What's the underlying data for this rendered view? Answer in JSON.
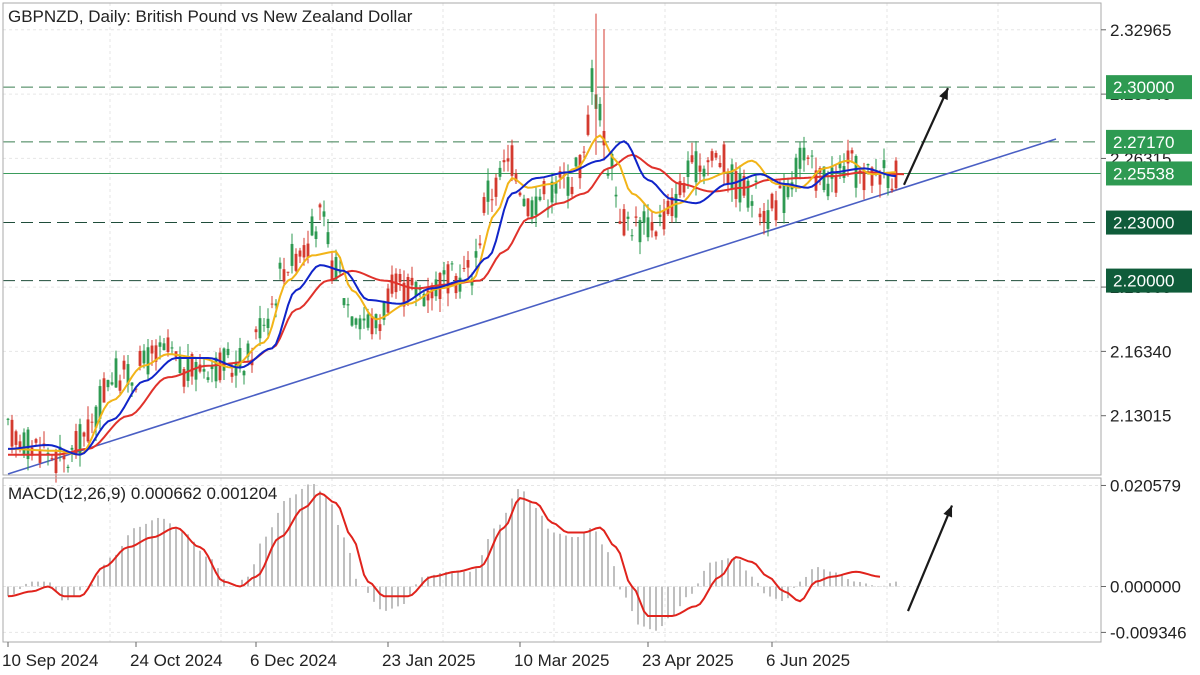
{
  "chart_data": [
    {
      "type": "candlestick",
      "title": "GBPNZD, Daily:  British Pound vs New Zealand Dollar",
      "price_axis": {
        "ylim": [
          2.0995,
          2.3435
        ],
        "tick_labels": [
          "2.32965",
          "2.29640",
          "2.26315",
          "2.19665",
          "2.16340",
          "2.13015"
        ],
        "tick_values": [
          2.32965,
          2.2964,
          2.26315,
          2.19665,
          2.1634,
          2.13015
        ]
      },
      "time_axis": {
        "labels": [
          "10 Sep 2024",
          "24 Oct 2024",
          "6 Dec 2024",
          "23 Jan 2025",
          "10 Mar 2025",
          "23 Apr 2025",
          "6 Jun 2025"
        ],
        "label_bars": [
          0,
          32,
          62,
          95,
          128,
          160,
          191
        ]
      },
      "levels": [
        {
          "label": "2.30000",
          "value": 2.3,
          "color": "#2e9a52",
          "style": "dashed",
          "line": "#3a7d50"
        },
        {
          "label": "2.27170",
          "value": 2.2717,
          "color": "#2e9a52",
          "style": "dashed",
          "line": "#3a7d50"
        },
        {
          "label": "2.25538",
          "value": 2.25538,
          "color": "#2e9a52",
          "style": "solid",
          "line": "#3b9c5c"
        },
        {
          "label": "2.23000",
          "value": 2.23,
          "color": "#0f5c3a",
          "style": "dashed",
          "line": "#1f4d3a"
        },
        {
          "label": "2.20000",
          "value": 2.2,
          "color": "#0f5c3a",
          "style": "dashed",
          "line": "#1f4d3a"
        }
      ],
      "trendline": {
        "from": {
          "bar": 0,
          "value": 2.1
        },
        "to": {
          "bar": 262,
          "value": 2.2732
        },
        "color": "#4a5fc4"
      },
      "arrow": {
        "from": {
          "bar": 224,
          "value": 2.2495
        },
        "to": {
          "bar": 235,
          "value": 2.2995
        }
      },
      "candles_anchor": [
        [
          0,
          2.121
        ],
        [
          8,
          2.114
        ],
        [
          14,
          2.106
        ],
        [
          20,
          2.122
        ],
        [
          26,
          2.152
        ],
        [
          30,
          2.15
        ],
        [
          36,
          2.16
        ],
        [
          40,
          2.163
        ],
        [
          44,
          2.152
        ],
        [
          50,
          2.157
        ],
        [
          56,
          2.156
        ],
        [
          60,
          2.16
        ],
        [
          64,
          2.181
        ],
        [
          70,
          2.21
        ],
        [
          74,
          2.218
        ],
        [
          78,
          2.232
        ],
        [
          82,
          2.205
        ],
        [
          86,
          2.185
        ],
        [
          92,
          2.177
        ],
        [
          96,
          2.195
        ],
        [
          104,
          2.195
        ],
        [
          110,
          2.2
        ],
        [
          116,
          2.205
        ],
        [
          120,
          2.245
        ],
        [
          126,
          2.262
        ],
        [
          130,
          2.24
        ],
        [
          134,
          2.245
        ],
        [
          140,
          2.252
        ],
        [
          144,
          2.262
        ],
        [
          146,
          2.305
        ],
        [
          148,
          2.285
        ],
        [
          150,
          2.262
        ],
        [
          154,
          2.232
        ],
        [
          158,
          2.228
        ],
        [
          162,
          2.23
        ],
        [
          166,
          2.238
        ],
        [
          170,
          2.255
        ],
        [
          174,
          2.262
        ],
        [
          178,
          2.264
        ],
        [
          182,
          2.25
        ],
        [
          186,
          2.245
        ],
        [
          190,
          2.235
        ],
        [
          194,
          2.243
        ],
        [
          198,
          2.263
        ],
        [
          202,
          2.255
        ],
        [
          206,
          2.25
        ],
        [
          210,
          2.26
        ],
        [
          214,
          2.252
        ],
        [
          218,
          2.258
        ],
        [
          222,
          2.255
        ]
      ],
      "ma_yellow": [
        [
          0,
          2.113
        ],
        [
          12,
          2.112
        ],
        [
          18,
          2.11
        ],
        [
          26,
          2.138
        ],
        [
          34,
          2.156
        ],
        [
          40,
          2.162
        ],
        [
          48,
          2.16
        ],
        [
          56,
          2.155
        ],
        [
          64,
          2.168
        ],
        [
          70,
          2.2
        ],
        [
          76,
          2.213
        ],
        [
          82,
          2.215
        ],
        [
          86,
          2.195
        ],
        [
          92,
          2.18
        ],
        [
          100,
          2.188
        ],
        [
          108,
          2.196
        ],
        [
          116,
          2.2
        ],
        [
          122,
          2.235
        ],
        [
          126,
          2.253
        ],
        [
          130,
          2.248
        ],
        [
          136,
          2.25
        ],
        [
          142,
          2.258
        ],
        [
          148,
          2.275
        ],
        [
          152,
          2.262
        ],
        [
          156,
          2.245
        ],
        [
          162,
          2.235
        ],
        [
          168,
          2.24
        ],
        [
          174,
          2.252
        ],
        [
          180,
          2.256
        ],
        [
          186,
          2.262
        ],
        [
          192,
          2.25
        ],
        [
          198,
          2.248
        ],
        [
          204,
          2.258
        ],
        [
          210,
          2.262
        ],
        [
          216,
          2.255
        ],
        [
          222,
          2.256
        ]
      ],
      "ma_blue": [
        [
          0,
          2.113
        ],
        [
          10,
          2.115
        ],
        [
          18,
          2.11
        ],
        [
          26,
          2.128
        ],
        [
          34,
          2.148
        ],
        [
          42,
          2.16
        ],
        [
          50,
          2.16
        ],
        [
          58,
          2.155
        ],
        [
          66,
          2.165
        ],
        [
          72,
          2.195
        ],
        [
          78,
          2.208
        ],
        [
          84,
          2.205
        ],
        [
          90,
          2.19
        ],
        [
          98,
          2.188
        ],
        [
          106,
          2.196
        ],
        [
          114,
          2.2
        ],
        [
          120,
          2.212
        ],
        [
          126,
          2.245
        ],
        [
          132,
          2.253
        ],
        [
          140,
          2.256
        ],
        [
          148,
          2.262
        ],
        [
          154,
          2.272
        ],
        [
          160,
          2.252
        ],
        [
          166,
          2.242
        ],
        [
          172,
          2.24
        ],
        [
          180,
          2.25
        ],
        [
          188,
          2.255
        ],
        [
          194,
          2.25
        ],
        [
          200,
          2.248
        ],
        [
          206,
          2.256
        ],
        [
          214,
          2.258
        ],
        [
          222,
          2.254
        ]
      ],
      "ma_red": [
        [
          0,
          2.11
        ],
        [
          12,
          2.11
        ],
        [
          20,
          2.113
        ],
        [
          30,
          2.13
        ],
        [
          40,
          2.15
        ],
        [
          50,
          2.156
        ],
        [
          60,
          2.158
        ],
        [
          66,
          2.165
        ],
        [
          72,
          2.185
        ],
        [
          80,
          2.2
        ],
        [
          86,
          2.205
        ],
        [
          94,
          2.2
        ],
        [
          102,
          2.196
        ],
        [
          110,
          2.198
        ],
        [
          118,
          2.2
        ],
        [
          124,
          2.215
        ],
        [
          130,
          2.232
        ],
        [
          138,
          2.24
        ],
        [
          144,
          2.245
        ],
        [
          150,
          2.258
        ],
        [
          156,
          2.265
        ],
        [
          162,
          2.258
        ],
        [
          168,
          2.25
        ],
        [
          176,
          2.246
        ],
        [
          184,
          2.248
        ],
        [
          190,
          2.252
        ],
        [
          198,
          2.253
        ],
        [
          206,
          2.254
        ],
        [
          214,
          2.256
        ],
        [
          224,
          2.255
        ]
      ]
    },
    {
      "type": "macd",
      "label": "MACD(12,26,9) 0.000662 0.001204",
      "ylim": [
        -0.0113,
        0.0221
      ],
      "tick_labels": [
        "0.020579",
        "0.000000",
        "-0.009346"
      ],
      "tick_values": [
        0.020579,
        0.0,
        -0.009346
      ],
      "histogram_anchor": [
        [
          0,
          -0.002
        ],
        [
          6,
          0.001
        ],
        [
          10,
          0.001
        ],
        [
          14,
          -0.003
        ],
        [
          20,
          0.0
        ],
        [
          26,
          0.006
        ],
        [
          32,
          0.012
        ],
        [
          38,
          0.014
        ],
        [
          44,
          0.011
        ],
        [
          50,
          0.006
        ],
        [
          56,
          0.0
        ],
        [
          60,
          0.002
        ],
        [
          64,
          0.01
        ],
        [
          70,
          0.018
        ],
        [
          76,
          0.021
        ],
        [
          80,
          0.018
        ],
        [
          84,
          0.01
        ],
        [
          88,
          0.0
        ],
        [
          94,
          -0.005
        ],
        [
          98,
          -0.004
        ],
        [
          104,
          0.002
        ],
        [
          110,
          0.003
        ],
        [
          116,
          0.003
        ],
        [
          122,
          0.012
        ],
        [
          128,
          0.02
        ],
        [
          132,
          0.016
        ],
        [
          136,
          0.011
        ],
        [
          142,
          0.01
        ],
        [
          146,
          0.012
        ],
        [
          150,
          0.007
        ],
        [
          154,
          -0.002
        ],
        [
          158,
          -0.008
        ],
        [
          162,
          -0.009
        ],
        [
          166,
          -0.006
        ],
        [
          170,
          -0.002
        ],
        [
          176,
          0.005
        ],
        [
          182,
          0.006
        ],
        [
          186,
          0.002
        ],
        [
          190,
          -0.002
        ],
        [
          194,
          -0.003
        ],
        [
          198,
          0.001
        ],
        [
          202,
          0.004
        ],
        [
          206,
          0.003
        ],
        [
          212,
          0.001
        ],
        [
          218,
          0.0
        ],
        [
          222,
          0.001
        ]
      ],
      "signal": [
        [
          0,
          -0.002
        ],
        [
          6,
          -0.001
        ],
        [
          10,
          0.0
        ],
        [
          14,
          -0.002
        ],
        [
          18,
          -0.002
        ],
        [
          24,
          0.004
        ],
        [
          30,
          0.008
        ],
        [
          36,
          0.01
        ],
        [
          42,
          0.012
        ],
        [
          48,
          0.008
        ],
        [
          54,
          0.001
        ],
        [
          58,
          0.0
        ],
        [
          62,
          0.002
        ],
        [
          68,
          0.01
        ],
        [
          74,
          0.016
        ],
        [
          78,
          0.019
        ],
        [
          82,
          0.017
        ],
        [
          86,
          0.01
        ],
        [
          90,
          0.001
        ],
        [
          94,
          -0.002
        ],
        [
          100,
          -0.002
        ],
        [
          106,
          0.002
        ],
        [
          112,
          0.003
        ],
        [
          118,
          0.004
        ],
        [
          124,
          0.012
        ],
        [
          128,
          0.018
        ],
        [
          132,
          0.017
        ],
        [
          136,
          0.013
        ],
        [
          140,
          0.011
        ],
        [
          144,
          0.011
        ],
        [
          148,
          0.012
        ],
        [
          152,
          0.008
        ],
        [
          156,
          0.0
        ],
        [
          160,
          -0.006
        ],
        [
          166,
          -0.006
        ],
        [
          172,
          -0.004
        ],
        [
          178,
          0.002
        ],
        [
          182,
          0.006
        ],
        [
          186,
          0.005
        ],
        [
          190,
          0.002
        ],
        [
          194,
          -0.001
        ],
        [
          198,
          -0.003
        ],
        [
          202,
          0.001
        ],
        [
          206,
          0.002
        ],
        [
          212,
          0.003
        ],
        [
          218,
          0.002
        ]
      ],
      "arrow": {
        "from": {
          "bar": 225,
          "value": -0.005
        },
        "to": {
          "bar": 236,
          "value": 0.0165
        }
      }
    }
  ],
  "colors": {
    "bull": "#2e9a52",
    "bear": "#d43a2f",
    "ma_yellow": "#f2b418",
    "ma_blue": "#1024c9",
    "ma_red": "#e0322b",
    "signal": "#e0231c",
    "hist": "#b8b8b8",
    "arrow": "#1a1a1a",
    "border": "#aaaaaa"
  }
}
